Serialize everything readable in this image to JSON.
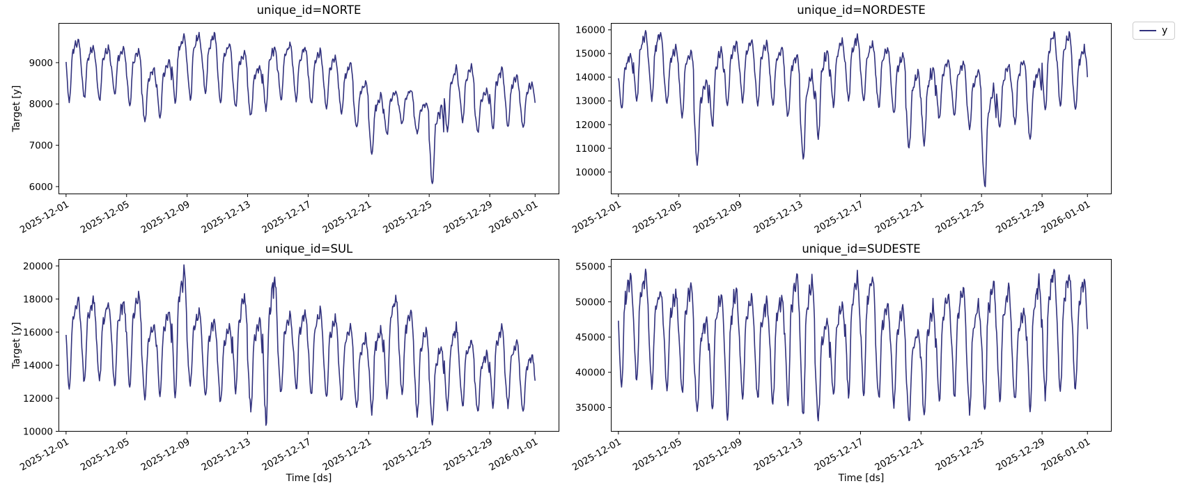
{
  "figure": {
    "background": "#ffffff",
    "text_color": "#000000",
    "spine_color": "#000000"
  },
  "chart_data": {
    "type": "line",
    "layout": "2x2 subplot grid, one series per subplot",
    "x_unit": "hourly timestamps from 2025-12-01 00:00 to 2026-01-01 00:00",
    "xlabel": "Time [ds]",
    "ylabel": "Target [y]",
    "line_color": "#31317d",
    "legend": {
      "label": "y",
      "position": "upper right, outside axes"
    },
    "x_tick_labels": [
      "2025-12-01",
      "2025-12-05",
      "2025-12-09",
      "2025-12-13",
      "2025-12-17",
      "2025-12-21",
      "2025-12-25",
      "2025-12-29",
      "2026-01-01"
    ],
    "x_tick_days": [
      0,
      4,
      8,
      12,
      16,
      20,
      24,
      28,
      31
    ],
    "xlim_days": [
      -0.5,
      32.6
    ],
    "x_tick_rotation_deg": 30,
    "grid": false,
    "intraday_profile_24h": [
      0.56,
      0.44,
      0.3,
      0.16,
      0.06,
      0.0,
      0.05,
      0.16,
      0.38,
      0.6,
      0.72,
      0.78,
      0.74,
      0.78,
      0.86,
      0.92,
      0.9,
      0.86,
      0.93,
      1.0,
      0.95,
      0.88,
      0.78,
      0.66
    ],
    "noise_fraction_of_daily_range": 0.045,
    "subplots": [
      {
        "id": "norte",
        "title": "unique_id=NORTE",
        "y_ticks": [
          6000,
          7000,
          8000,
          9000
        ],
        "ylim": [
          5815,
          9960
        ],
        "daily_min": [
          8100,
          8150,
          8070,
          8240,
          7980,
          7560,
          7650,
          8050,
          8100,
          8250,
          8050,
          7900,
          7700,
          7850,
          8050,
          8100,
          8000,
          7900,
          7750,
          7400,
          6750,
          7250,
          7500,
          7300,
          6050,
          7300,
          7550,
          7300,
          7400,
          7450,
          7400
        ],
        "daily_max": [
          9620,
          9430,
          9400,
          9380,
          9340,
          8900,
          9100,
          9680,
          9740,
          9730,
          9500,
          9300,
          8950,
          9430,
          9500,
          9400,
          9300,
          9160,
          9000,
          8550,
          8250,
          8350,
          8350,
          8050,
          8000,
          8900,
          8950,
          8350,
          8900,
          8700,
          8550
        ]
      },
      {
        "id": "nordeste",
        "title": "unique_id=NORDESTE",
        "y_ticks": [
          10000,
          11000,
          12000,
          13000,
          14000,
          15000,
          16000
        ],
        "ylim": [
          9060,
          16290
        ],
        "daily_min": [
          12700,
          12900,
          13000,
          12900,
          12400,
          10400,
          11900,
          12800,
          13000,
          12900,
          12800,
          12300,
          10600,
          11500,
          12800,
          13000,
          12900,
          12700,
          12400,
          11000,
          11100,
          12200,
          12400,
          11800,
          9350,
          11800,
          12000,
          11300,
          12500,
          12800,
          12600
        ],
        "daily_max": [
          15000,
          15900,
          16000,
          15300,
          15200,
          14000,
          15300,
          15500,
          15600,
          15500,
          15300,
          15000,
          14200,
          15200,
          15600,
          15800,
          15500,
          15300,
          15000,
          14300,
          14500,
          14800,
          14700,
          14300,
          13600,
          14600,
          14800,
          14400,
          16000,
          15900,
          15300
        ]
      },
      {
        "id": "sul",
        "title": "unique_id=SUL",
        "y_ticks": [
          10000,
          12000,
          14000,
          16000,
          18000,
          20000
        ],
        "ylim": [
          9980,
          20420
        ],
        "daily_min": [
          12500,
          12900,
          13000,
          12800,
          12700,
          12000,
          12200,
          11900,
          12800,
          12100,
          11700,
          12300,
          11400,
          10450,
          12300,
          12500,
          12200,
          12000,
          11800,
          11300,
          11200,
          12000,
          12200,
          11000,
          10500,
          11400,
          11500,
          11100,
          11600,
          11500,
          11200
        ],
        "daily_max": [
          18300,
          18200,
          17900,
          18000,
          18400,
          16500,
          17300,
          19800,
          17300,
          16800,
          16400,
          18300,
          16800,
          19600,
          17100,
          17300,
          17400,
          17000,
          16500,
          15800,
          16400,
          18300,
          17400,
          16300,
          15200,
          16400,
          15600,
          14800,
          16400,
          15500,
          14700
        ]
      },
      {
        "id": "sudeste",
        "title": "unique_id=SUDESTE",
        "y_ticks": [
          35000,
          40000,
          45000,
          50000,
          55000
        ],
        "ylim": [
          31580,
          56080
        ],
        "daily_min": [
          37500,
          38500,
          38000,
          37500,
          37000,
          34500,
          35000,
          33500,
          36500,
          36000,
          35500,
          36000,
          34000,
          33500,
          36500,
          37000,
          36500,
          36000,
          35500,
          33000,
          33500,
          36000,
          36500,
          34500,
          34000,
          36000,
          36000,
          34500,
          36500,
          37000,
          37500
        ],
        "daily_max": [
          54500,
          54300,
          52000,
          51800,
          52500,
          48000,
          51500,
          52500,
          51000,
          50500,
          51500,
          54000,
          54000,
          47500,
          50000,
          53800,
          54000,
          50000,
          49500,
          46500,
          49800,
          51500,
          52500,
          50000,
          53500,
          52500,
          49000,
          53500,
          55000,
          54500,
          53800
        ]
      }
    ]
  }
}
